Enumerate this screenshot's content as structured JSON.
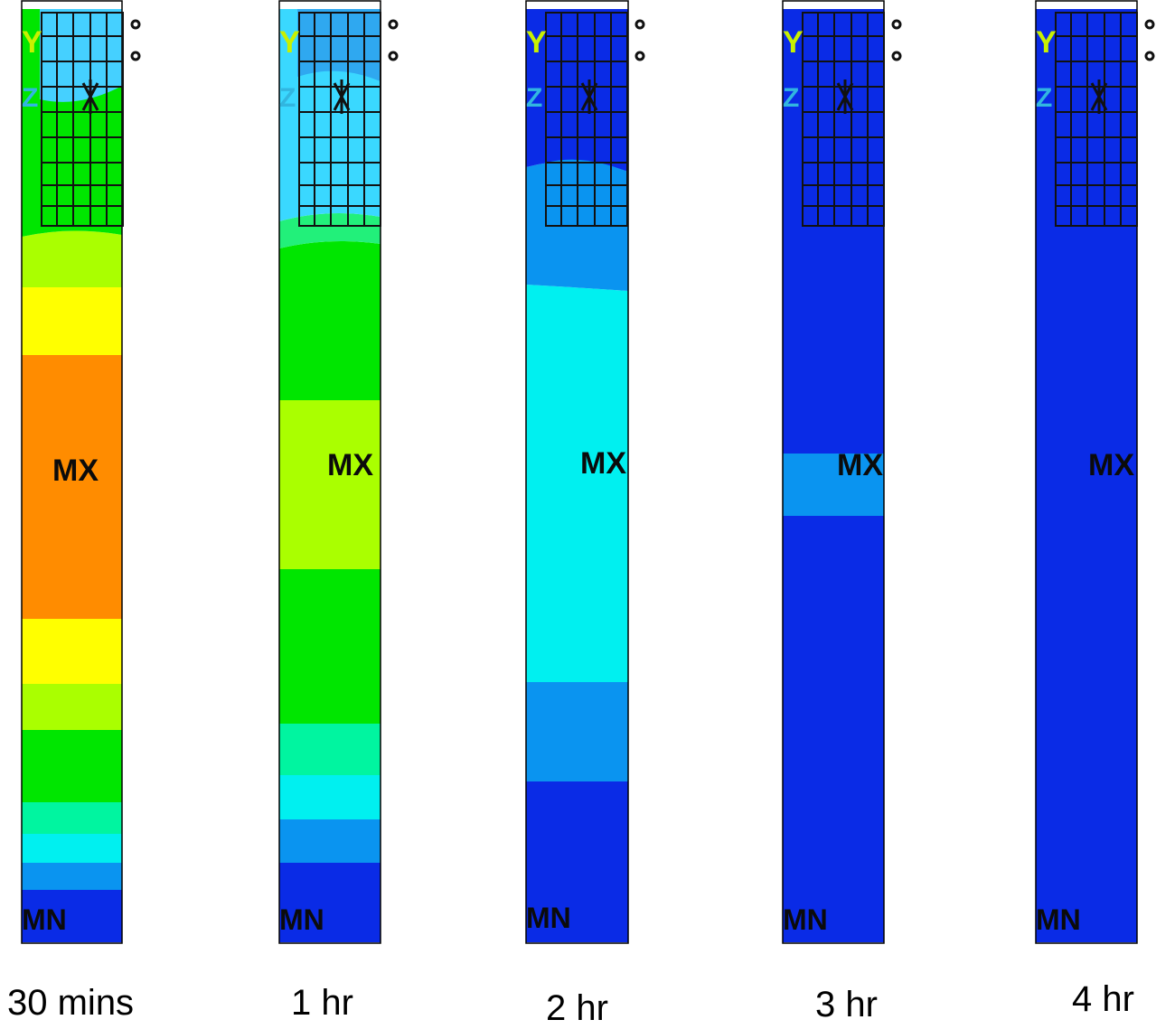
{
  "panels": [
    {
      "caption": "30 mins",
      "max_label": "MX",
      "min_label": "MN",
      "axis_y": "Y",
      "axis_z": "Z",
      "bands": [
        "#0a2be6",
        "#0a94f0",
        "#00f0f0",
        "#00f5a0",
        "#00e600",
        "#aaff00",
        "#ffff00",
        "#ff8c00",
        "#ffff00",
        "#aaff00"
      ],
      "grid_color": "#44dd88",
      "grid_fill": "#45d0ff"
    },
    {
      "caption": "1 hr",
      "max_label": "MX",
      "min_label": "MN",
      "axis_y": "Y",
      "axis_z": "Z",
      "bands": [
        "#0a2be6",
        "#0a94f0",
        "#00f0f0",
        "#00f5a0",
        "#00e600",
        "#aaff00",
        "#00e600",
        "#22f07a"
      ],
      "grid_color": "#2fa8f0",
      "grid_fill": "#3ad8ff"
    },
    {
      "caption": "2 hr",
      "max_label": "MX",
      "min_label": "MN",
      "axis_y": "Y",
      "axis_z": "Z",
      "bands": [
        "#0a2be6",
        "#0a94f0",
        "#00f0f0",
        "#0a94f0"
      ],
      "grid_color": "#0a2be6",
      "grid_fill": "#0a2be6"
    },
    {
      "caption": "3 hr",
      "max_label": "MX",
      "min_label": "MN",
      "axis_y": "Y",
      "axis_z": "Z",
      "bands": [
        "#0a2be6",
        "#0a94f0",
        "#0a2be6"
      ],
      "grid_color": "#0a2be6",
      "grid_fill": "#0a2be6"
    },
    {
      "caption": "4 hr",
      "max_label": "MX",
      "min_label": "MN",
      "axis_y": "Y",
      "axis_z": "Z",
      "bands": [
        "#0a2be6"
      ],
      "grid_color": "#0a2be6",
      "grid_fill": "#0a2be6"
    }
  ]
}
